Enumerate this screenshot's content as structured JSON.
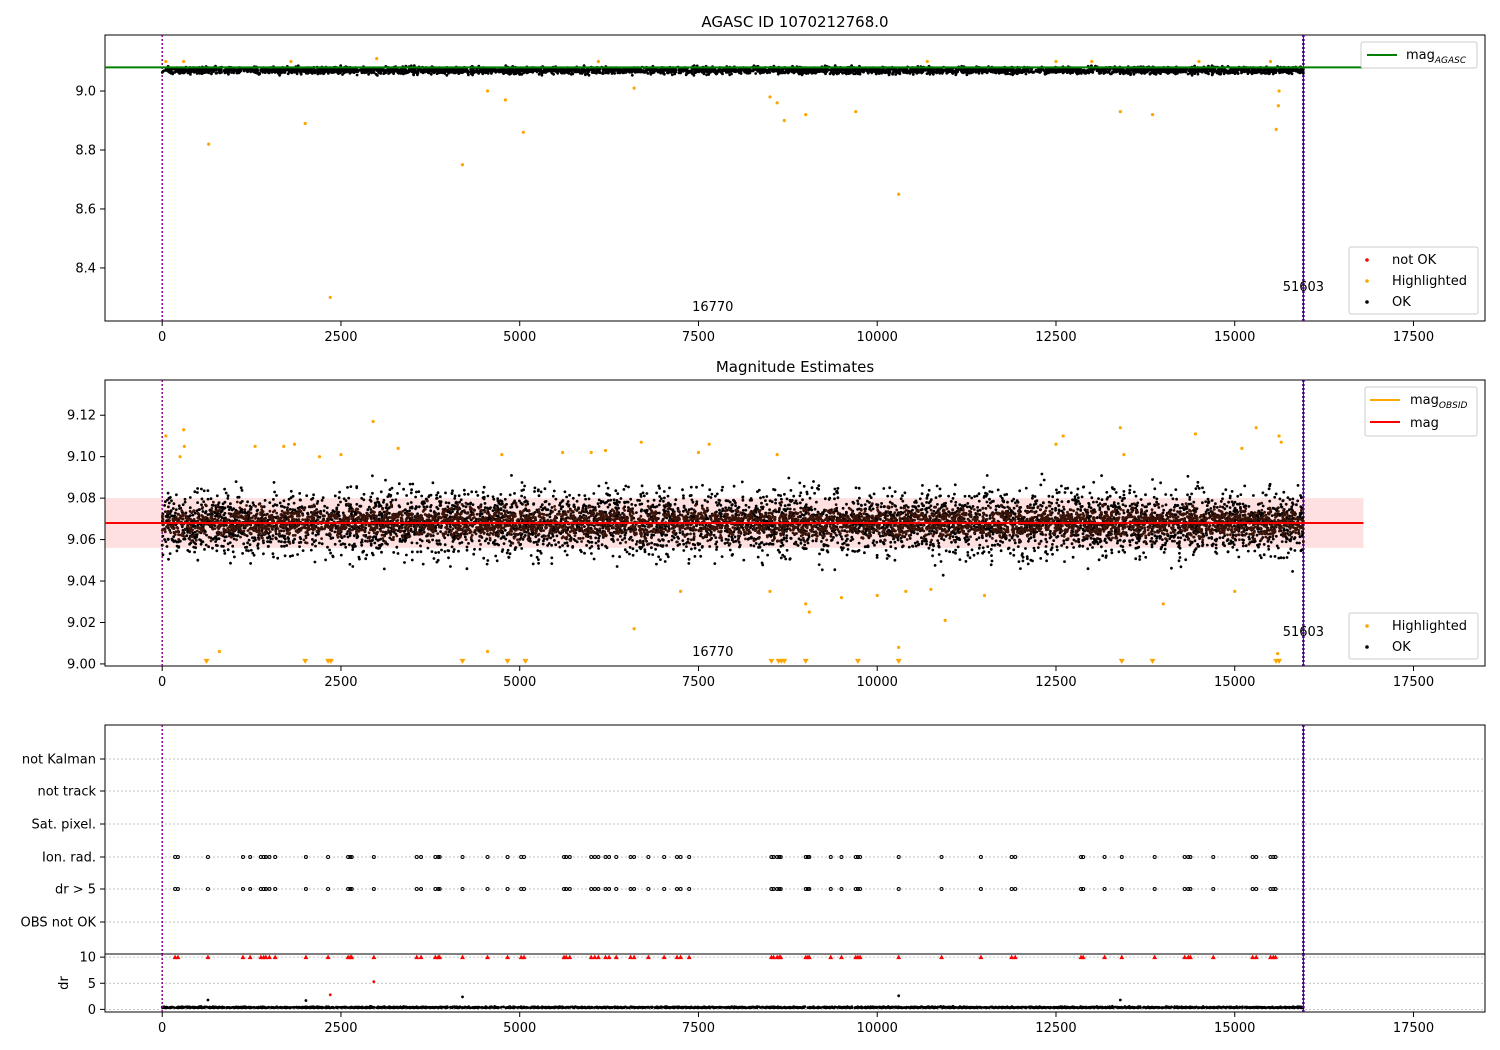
{
  "chart_data": [
    {
      "type": "scatter",
      "title": "AGASC ID 1070212768.0",
      "xlim": [
        -800,
        18500
      ],
      "ylim": [
        8.22,
        9.19
      ],
      "xticks": [
        "0",
        "2500",
        "5000",
        "7500",
        "10000",
        "12500",
        "15000",
        "17500"
      ],
      "yticks": [
        "8.4",
        "8.6",
        "8.8",
        "9.0"
      ],
      "ytick_values": [
        8.4,
        8.6,
        8.8,
        9.0
      ],
      "obs_lines": [
        {
          "x": 0,
          "label": "16770",
          "label_x": 7700
        },
        {
          "x": 15960,
          "label": "51603",
          "label_x": 15960
        }
      ],
      "band": {
        "y": 9.08,
        "x_range": [
          -800,
          16800
        ],
        "name": "mag",
        "sub": "AGASC",
        "color": "#008000"
      },
      "series": [
        {
          "name": "not OK",
          "color": "#ff0000",
          "points": []
        },
        {
          "name": "Highlighted",
          "color": "#ffa500",
          "points": [
            [
              650,
              8.82
            ],
            [
              2000,
              8.89
            ],
            [
              2350,
              8.3
            ],
            [
              4200,
              8.75
            ],
            [
              4550,
              9.0
            ],
            [
              4800,
              8.97
            ],
            [
              5050,
              8.86
            ],
            [
              6600,
              9.01
            ],
            [
              8500,
              8.98
            ],
            [
              8600,
              8.96
            ],
            [
              8700,
              8.9
            ],
            [
              9000,
              8.92
            ],
            [
              9700,
              8.93
            ],
            [
              10300,
              8.65
            ],
            [
              13400,
              8.93
            ],
            [
              13850,
              8.92
            ],
            [
              15580,
              8.87
            ],
            [
              15610,
              8.95
            ],
            [
              15620,
              9.0
            ],
            [
              50,
              9.1
            ],
            [
              300,
              9.1
            ],
            [
              1800,
              9.1
            ],
            [
              3000,
              9.11
            ],
            [
              6100,
              9.1
            ],
            [
              10700,
              9.1
            ],
            [
              12500,
              9.1
            ],
            [
              13000,
              9.1
            ],
            [
              14500,
              9.1
            ],
            [
              15500,
              9.1
            ]
          ]
        },
        {
          "name": "OK",
          "color": "#000000",
          "band": {
            "x_range": [
              0,
              15960
            ],
            "y_center": 9.07,
            "y_spread": 0.02
          },
          "points": []
        }
      ],
      "legend": [
        "not OK",
        "Highlighted",
        "OK"
      ],
      "legend_position": "lower right"
    },
    {
      "type": "scatter",
      "title": "Magnitude Estimates",
      "xlim": [
        -800,
        18500
      ],
      "ylim": [
        8.999,
        9.137
      ],
      "xticks": [
        "0",
        "2500",
        "5000",
        "7500",
        "10000",
        "12500",
        "15000",
        "17500"
      ],
      "yticks": [
        "9.00",
        "9.02",
        "9.04",
        "9.06",
        "9.08",
        "9.10",
        "9.12"
      ],
      "ytick_values": [
        9.0,
        9.02,
        9.04,
        9.06,
        9.08,
        9.1,
        9.12
      ],
      "obs_lines": [
        {
          "x": 0,
          "label": "16770",
          "label_x": 7700
        },
        {
          "x": 15960,
          "label": "51603",
          "label_x": 15960
        }
      ],
      "lines": [
        {
          "name": "mag",
          "sub": "OBSID",
          "color": "#ffa500",
          "y": 9.068,
          "x_range": [
            0,
            15960
          ]
        },
        {
          "name": "mag",
          "sub": "",
          "color": "#ff0000",
          "y": 9.068,
          "x_range": [
            -800,
            16800
          ]
        }
      ],
      "shaded_band": {
        "y_low": 9.056,
        "y_high": 9.08,
        "x_range": [
          -800,
          16800
        ],
        "color": "#ffcccc"
      },
      "series": [
        {
          "name": "Highlighted",
          "color": "#ffa500",
          "points": [
            [
              50,
              9.11
            ],
            [
              250,
              9.1
            ],
            [
              300,
              9.113
            ],
            [
              310,
              9.105
            ],
            [
              800,
              9.006
            ],
            [
              1300,
              9.105
            ],
            [
              1700,
              9.105
            ],
            [
              1850,
              9.106
            ],
            [
              2200,
              9.1
            ],
            [
              2500,
              9.101
            ],
            [
              2950,
              9.117
            ],
            [
              3300,
              9.104
            ],
            [
              4550,
              9.006
            ],
            [
              4750,
              9.101
            ],
            [
              5600,
              9.102
            ],
            [
              6000,
              9.102
            ],
            [
              6200,
              9.103
            ],
            [
              6600,
              9.017
            ],
            [
              6700,
              9.107
            ],
            [
              7250,
              9.035
            ],
            [
              7500,
              9.102
            ],
            [
              7650,
              9.106
            ],
            [
              8500,
              9.035
            ],
            [
              8600,
              9.101
            ],
            [
              9000,
              9.029
            ],
            [
              9050,
              9.025
            ],
            [
              9500,
              9.032
            ],
            [
              10000,
              9.033
            ],
            [
              10300,
              9.008
            ],
            [
              10400,
              9.035
            ],
            [
              10750,
              9.036
            ],
            [
              10950,
              9.021
            ],
            [
              11500,
              9.033
            ],
            [
              12500,
              9.106
            ],
            [
              12600,
              9.11
            ],
            [
              13400,
              9.114
            ],
            [
              13450,
              9.101
            ],
            [
              14000,
              9.029
            ],
            [
              14450,
              9.111
            ],
            [
              15000,
              9.035
            ],
            [
              15100,
              9.104
            ],
            [
              15300,
              9.114
            ],
            [
              15600,
              9.005
            ],
            [
              15620,
              9.11
            ],
            [
              15650,
              9.107
            ]
          ]
        },
        {
          "name": "Highlighted-low",
          "color": "#ffa500",
          "marker": "triangle-down",
          "y": 9.0,
          "x": [
            620,
            2000,
            2320,
            2360,
            4200,
            4830,
            5080,
            8520,
            8620,
            8660,
            8700,
            9000,
            9730,
            10300,
            13420,
            13850,
            15580,
            15620
          ]
        },
        {
          "name": "OK",
          "color": "#000000",
          "band": {
            "x_range": [
              0,
              15960
            ],
            "y_center": 9.068,
            "y_spread": 0.027
          },
          "points": []
        },
        {
          "name": "OK-dense",
          "color": "#3a1408",
          "band": {
            "x_range": [
              0,
              15960
            ],
            "y_center": 9.068,
            "y_spread": 0.012
          },
          "points": []
        }
      ],
      "legend_top": [
        "mag_OBSID",
        "mag"
      ],
      "legend_bottom": [
        "Highlighted",
        "OK"
      ],
      "legend_position": "upper right / lower right"
    },
    {
      "type": "scatter",
      "title": "",
      "xlim": [
        -800,
        18500
      ],
      "xticks": [
        "0",
        "2500",
        "5000",
        "7500",
        "10000",
        "12500",
        "15000",
        "17500"
      ],
      "categories": [
        "not Kalman",
        "not track",
        "Sat. pixel.",
        "Ion. rad.",
        "dr > 5",
        "OBS not OK"
      ],
      "flag_x": [
        180,
        220,
        640,
        1130,
        1230,
        1380,
        1420,
        1450,
        1500,
        1580,
        2010,
        2320,
        2600,
        2630,
        2650,
        2960,
        3560,
        3620,
        3820,
        3860,
        3880,
        4200,
        4550,
        4830,
        5020,
        5060,
        5620,
        5650,
        5700,
        6000,
        6050,
        6100,
        6200,
        6250,
        6350,
        6550,
        6600,
        6800,
        7020,
        7200,
        7250,
        7370,
        8520,
        8550,
        8600,
        8630,
        8650,
        9000,
        9030,
        9050,
        9350,
        9500,
        9700,
        9730,
        9760,
        10300,
        10900,
        11450,
        11880,
        11930,
        12850,
        12880,
        13180,
        13420,
        13880,
        14300,
        14350,
        14380,
        14700,
        15250,
        15300,
        15500,
        15540,
        15570
      ],
      "obs_lines": [
        {
          "x": 0
        },
        {
          "x": 15960
        }
      ]
    },
    {
      "type": "scatter",
      "title": "",
      "ylabel": "dr",
      "xlim": [
        -800,
        18500
      ],
      "ylim": [
        -0.5,
        10.6
      ],
      "xticks": [
        "0",
        "2500",
        "5000",
        "7500",
        "10000",
        "12500",
        "15000",
        "17500"
      ],
      "yticks": [
        "0",
        "5",
        "10"
      ],
      "ytick_values": [
        0,
        5,
        10
      ],
      "series": [
        {
          "name": "dr-capped",
          "color": "#ff0000",
          "marker": "triangle-up",
          "y": 10
        },
        {
          "name": "dr-outliers",
          "color": "#ff0000",
          "points": [
            [
              2350,
              2.8
            ],
            [
              2960,
              5.3
            ]
          ]
        },
        {
          "name": "dr-black-outliers",
          "color": "#000000",
          "points": [
            [
              640,
              1.8
            ],
            [
              2010,
              1.7
            ],
            [
              4200,
              2.4
            ],
            [
              10300,
              2.6
            ],
            [
              13400,
              1.8
            ]
          ]
        },
        {
          "name": "dr",
          "color": "#000000",
          "band": {
            "x_range": [
              0,
              15960
            ],
            "y_center": 0.3,
            "y_spread": 0.35
          },
          "points": []
        }
      ],
      "obs_lines": [
        {
          "x": 0
        },
        {
          "x": 15960
        }
      ]
    }
  ]
}
